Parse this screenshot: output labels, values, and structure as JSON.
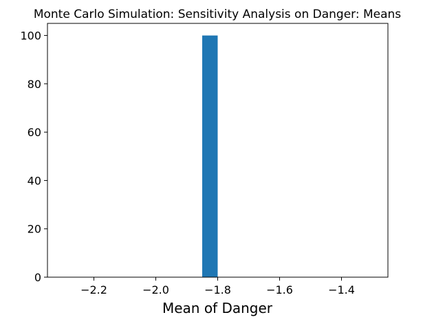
{
  "chart_data": {
    "type": "bar",
    "title": "Monte Carlo Simulation: Sensitivity Analysis on Danger: Means",
    "xlabel": "Mean of Danger",
    "ylabel": "",
    "xlim": [
      -2.35,
      -1.25
    ],
    "ylim": [
      0,
      105
    ],
    "x_ticks": [
      -2.2,
      -2.0,
      -1.8,
      -1.6,
      -1.4
    ],
    "x_tick_labels": [
      "−2.2",
      "−2.0",
      "−1.8",
      "−1.6",
      "−1.4"
    ],
    "y_ticks": [
      0,
      20,
      40,
      60,
      80,
      100
    ],
    "y_tick_labels": [
      "0",
      "20",
      "40",
      "60",
      "80",
      "100"
    ],
    "bins": [
      {
        "x_start": -1.85,
        "x_end": -1.8,
        "count": 100
      }
    ],
    "bar_color": "#1f77b4",
    "grid": false,
    "legend": "none"
  }
}
